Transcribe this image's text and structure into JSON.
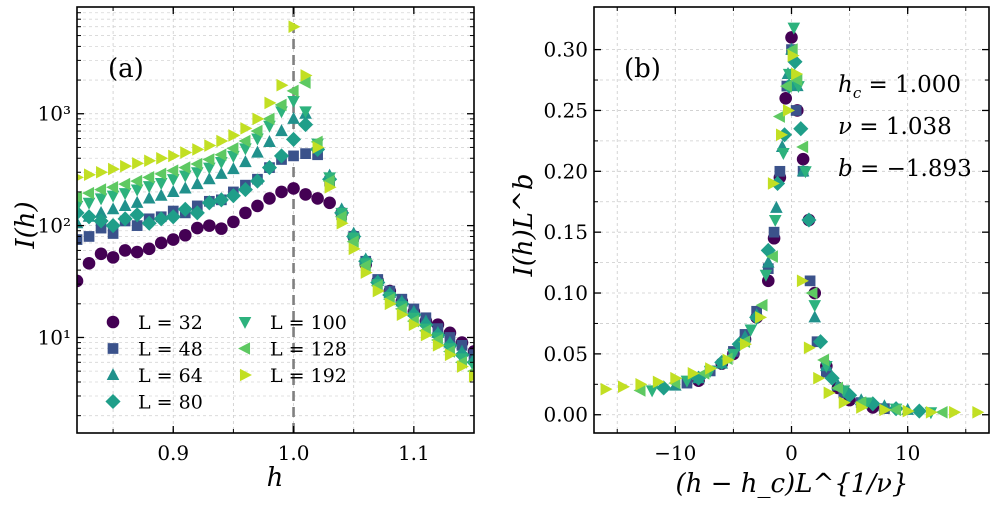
{
  "chart_data": [
    {
      "type": "scatter",
      "panel_label": "(a)",
      "xlabel": "h",
      "ylabel": "I(h)",
      "yscale": "log",
      "xlim": [
        0.82,
        1.15
      ],
      "ylim": [
        1.4,
        9000
      ],
      "xticks": [
        0.9,
        1.0,
        1.1
      ],
      "xtick_labels": [
        "0.9",
        "1.0",
        "1.1"
      ],
      "yticks": [
        10,
        100,
        1000
      ],
      "ytick_labels": [
        "10¹",
        "10²",
        "10³"
      ],
      "grid": true,
      "vline": {
        "x": 1.0,
        "style": "dashed",
        "color": "#808080"
      },
      "legend": {
        "placement": "lower-left",
        "columns": 2
      },
      "series": [
        {
          "name": "L = 32",
          "marker": "circle",
          "color": "#440154",
          "x": [
            0.82,
            0.83,
            0.84,
            0.85,
            0.86,
            0.87,
            0.88,
            0.89,
            0.9,
            0.91,
            0.92,
            0.93,
            0.94,
            0.95,
            0.96,
            0.97,
            0.98,
            0.99,
            1.0,
            1.01,
            1.02,
            1.03,
            1.04,
            1.05,
            1.06,
            1.07,
            1.08,
            1.09,
            1.1,
            1.11,
            1.12,
            1.13,
            1.14,
            1.15
          ],
          "y": [
            32,
            46,
            56,
            52,
            60,
            58,
            62,
            70,
            75,
            82,
            95,
            100,
            94,
            108,
            130,
            150,
            175,
            200,
            215,
            190,
            175,
            160,
            130,
            80,
            45,
            32,
            26,
            21,
            17,
            14,
            13,
            11,
            9,
            7.5
          ]
        },
        {
          "name": "L = 48",
          "marker": "square",
          "color": "#3b528b",
          "x": [
            0.82,
            0.83,
            0.84,
            0.85,
            0.86,
            0.87,
            0.88,
            0.89,
            0.9,
            0.91,
            0.92,
            0.93,
            0.94,
            0.95,
            0.96,
            0.97,
            0.98,
            0.99,
            1.0,
            1.01,
            1.02,
            1.03,
            1.04,
            1.05,
            1.06,
            1.07,
            1.08,
            1.09,
            1.1,
            1.11,
            1.12,
            1.13,
            1.14,
            1.15
          ],
          "y": [
            75,
            80,
            95,
            85,
            110,
            100,
            115,
            120,
            135,
            130,
            150,
            165,
            170,
            200,
            230,
            260,
            330,
            390,
            420,
            440,
            430,
            250,
            125,
            80,
            48,
            33,
            26,
            22,
            18,
            15,
            12,
            10,
            8.5,
            7
          ]
        },
        {
          "name": "L = 64",
          "marker": "triangle-up",
          "color": "#21918c",
          "x": [
            0.82,
            0.83,
            0.84,
            0.85,
            0.86,
            0.87,
            0.88,
            0.89,
            0.9,
            0.91,
            0.92,
            0.93,
            0.94,
            0.95,
            0.96,
            0.97,
            0.98,
            0.99,
            1.0,
            1.01,
            1.02,
            1.03,
            1.04,
            1.05,
            1.06,
            1.07,
            1.08,
            1.09,
            1.1,
            1.11,
            1.12,
            1.13,
            1.14,
            1.15
          ],
          "y": [
            105,
            120,
            130,
            140,
            150,
            160,
            175,
            185,
            200,
            215,
            235,
            260,
            290,
            320,
            370,
            450,
            560,
            700,
            900,
            1000,
            520,
            280,
            140,
            85,
            50,
            32,
            25,
            21,
            17,
            14,
            11,
            9,
            7.5,
            6.5
          ]
        },
        {
          "name": "L = 80",
          "marker": "diamond",
          "color": "#1f9e89",
          "x": [
            0.82,
            0.83,
            0.84,
            0.85,
            0.86,
            0.87,
            0.88,
            0.89,
            0.9,
            0.91,
            0.92,
            0.93,
            0.94,
            0.95,
            0.96,
            0.97,
            0.98,
            0.99,
            1.0,
            1.01,
            1.02,
            1.03,
            1.04,
            1.05,
            1.06,
            1.07,
            1.08,
            1.09,
            1.1,
            1.11,
            1.12,
            1.13,
            1.14,
            1.15
          ],
          "y": [
            130,
            120,
            110,
            100,
            115,
            125,
            105,
            115,
            120,
            140,
            130,
            160,
            170,
            185,
            210,
            250,
            330,
            420,
            590,
            800,
            480,
            260,
            130,
            80,
            48,
            31,
            24,
            20,
            16,
            13,
            10.5,
            8.5,
            7,
            6
          ]
        },
        {
          "name": "L = 100",
          "marker": "triangle-down",
          "color": "#2db27d",
          "x": [
            0.82,
            0.83,
            0.84,
            0.85,
            0.86,
            0.87,
            0.88,
            0.89,
            0.9,
            0.91,
            0.92,
            0.93,
            0.94,
            0.95,
            0.96,
            0.97,
            0.98,
            0.99,
            1.0,
            1.01,
            1.02,
            1.03,
            1.04,
            1.05,
            1.06,
            1.07,
            1.08,
            1.09,
            1.1,
            1.11,
            1.12,
            1.13,
            1.14,
            1.15
          ],
          "y": [
            150,
            160,
            175,
            185,
            195,
            210,
            225,
            240,
            260,
            280,
            300,
            330,
            370,
            420,
            490,
            600,
            780,
            1050,
            1300,
            1050,
            540,
            270,
            130,
            78,
            46,
            30,
            23,
            19,
            15,
            12,
            10,
            8,
            6.5,
            5.5
          ]
        },
        {
          "name": "L = 128",
          "marker": "triangle-left",
          "color": "#5ec962",
          "x": [
            0.82,
            0.83,
            0.84,
            0.85,
            0.86,
            0.87,
            0.88,
            0.89,
            0.9,
            0.91,
            0.92,
            0.93,
            0.94,
            0.95,
            0.96,
            0.97,
            0.98,
            0.99,
            1.0,
            1.01,
            1.02,
            1.03,
            1.04,
            1.05,
            1.06,
            1.07,
            1.08,
            1.09,
            1.1,
            1.11,
            1.12,
            1.13,
            1.14,
            1.15
          ],
          "y": [
            180,
            195,
            210,
            220,
            235,
            250,
            270,
            290,
            310,
            330,
            355,
            390,
            430,
            490,
            570,
            700,
            900,
            1200,
            1600,
            1900,
            560,
            250,
            120,
            72,
            44,
            29,
            22,
            18,
            14,
            11.5,
            9.5,
            7.5,
            6,
            5
          ]
        },
        {
          "name": "L = 192",
          "marker": "triangle-right",
          "color": "#c2df23",
          "x": [
            0.82,
            0.83,
            0.84,
            0.85,
            0.86,
            0.87,
            0.88,
            0.89,
            0.9,
            0.91,
            0.92,
            0.93,
            0.94,
            0.95,
            0.96,
            0.97,
            0.98,
            0.99,
            1.0,
            1.01,
            1.02,
            1.03,
            1.04,
            1.05,
            1.06,
            1.07,
            1.08,
            1.09,
            1.1,
            1.11,
            1.12,
            1.13,
            1.14,
            1.15
          ],
          "y": [
            270,
            285,
            300,
            320,
            340,
            360,
            380,
            400,
            420,
            450,
            480,
            520,
            570,
            640,
            740,
            900,
            1250,
            1800,
            6000,
            2200,
            500,
            220,
            105,
            62,
            38,
            26,
            20,
            16,
            13,
            10.5,
            8.5,
            7,
            5.5,
            4.5
          ]
        }
      ]
    },
    {
      "type": "scatter",
      "panel_label": "(b)",
      "xlabel": "(h − h_c)L^{1/ν}",
      "ylabel": "I(h)L^b",
      "xlim": [
        -17,
        17
      ],
      "ylim": [
        -0.015,
        0.335
      ],
      "xticks": [
        -10,
        0,
        10
      ],
      "xtick_labels": [
        "−10",
        "0",
        "10"
      ],
      "yticks": [
        0.0,
        0.05,
        0.1,
        0.15,
        0.2,
        0.25,
        0.3
      ],
      "ytick_labels": [
        "0.00",
        "0.05",
        "0.10",
        "0.15",
        "0.20",
        "0.25",
        "0.30"
      ],
      "grid": true,
      "annotations": [
        "h_c = 1.000",
        "ν = 1.038",
        "b = −1.893"
      ],
      "annotation_parts": {
        "hc_symbol": "h",
        "hc_subscript": "c",
        "hc_value": " = 1.000",
        "nu_symbol": "ν",
        "nu_value": " = 1.038",
        "b_symbol": "b",
        "b_value": " = −1.893"
      },
      "series": [
        {
          "name": "L = 32",
          "marker": "circle",
          "color": "#440154",
          "x": [
            -8,
            -6,
            -5,
            -4,
            -3,
            -2,
            -1.5,
            -1,
            -0.5,
            0,
            0.5,
            1,
            1.5,
            2,
            3,
            4,
            5,
            7
          ],
          "y": [
            0.028,
            0.042,
            0.05,
            0.062,
            0.08,
            0.11,
            0.145,
            0.195,
            0.26,
            0.31,
            0.25,
            0.21,
            0.16,
            0.1,
            0.04,
            0.022,
            0.012,
            0.006
          ]
        },
        {
          "name": "L = 48",
          "marker": "square",
          "color": "#3b528b",
          "x": [
            -9,
            -7,
            -5,
            -4,
            -3,
            -2,
            -1.5,
            -1,
            -0.4,
            0,
            0.4,
            1,
            1.6,
            2.2,
            3,
            4.5,
            6,
            8
          ],
          "y": [
            0.026,
            0.036,
            0.052,
            0.066,
            0.085,
            0.12,
            0.15,
            0.2,
            0.27,
            0.3,
            0.25,
            0.2,
            0.11,
            0.06,
            0.035,
            0.018,
            0.01,
            0.005
          ]
        },
        {
          "name": "L = 64",
          "marker": "triangle-up",
          "color": "#21918c",
          "x": [
            -10,
            -8,
            -6,
            -4,
            -3,
            -2,
            -1.3,
            -0.8,
            -0.3,
            0,
            0.5,
            1,
            2,
            3,
            4,
            6,
            8,
            10
          ],
          "y": [
            0.024,
            0.03,
            0.042,
            0.064,
            0.082,
            0.125,
            0.17,
            0.22,
            0.28,
            0.3,
            0.27,
            0.2,
            0.08,
            0.04,
            0.024,
            0.012,
            0.007,
            0.004
          ]
        },
        {
          "name": "L = 80",
          "marker": "diamond",
          "color": "#1f9e89",
          "x": [
            -11,
            -8,
            -6,
            -4.5,
            -3,
            -2,
            -1.2,
            -0.6,
            -0.2,
            0.3,
            0.8,
            1.5,
            2.5,
            3.5,
            5,
            7,
            9,
            11
          ],
          "y": [
            0.022,
            0.03,
            0.043,
            0.058,
            0.08,
            0.135,
            0.19,
            0.23,
            0.27,
            0.29,
            0.235,
            0.16,
            0.06,
            0.03,
            0.016,
            0.009,
            0.005,
            0.003
          ]
        },
        {
          "name": "L = 100",
          "marker": "triangle-down",
          "color": "#2db27d",
          "x": [
            -12,
            -9,
            -7,
            -5,
            -3.5,
            -2.2,
            -1.4,
            -0.7,
            -0.2,
            0.2,
            0.6,
            1.2,
            2,
            3,
            4.5,
            6.5,
            9,
            12
          ],
          "y": [
            0.02,
            0.028,
            0.036,
            0.05,
            0.07,
            0.115,
            0.16,
            0.215,
            0.28,
            0.318,
            0.27,
            0.2,
            0.09,
            0.04,
            0.02,
            0.01,
            0.005,
            0.002
          ]
        },
        {
          "name": "L = 128",
          "marker": "triangle-left",
          "color": "#5ec962",
          "x": [
            -13,
            -10,
            -7.5,
            -5.5,
            -4,
            -2.5,
            -1.6,
            -1,
            -0.4,
            0.1,
            0.5,
            1,
            1.8,
            2.8,
            4,
            6,
            9,
            13
          ],
          "y": [
            0.02,
            0.026,
            0.034,
            0.046,
            0.06,
            0.09,
            0.13,
            0.245,
            0.27,
            0.3,
            0.275,
            0.22,
            0.1,
            0.045,
            0.022,
            0.01,
            0.004,
            0.002
          ]
        },
        {
          "name": "L = 192",
          "marker": "triangle-right",
          "color": "#c2df23",
          "x": [
            -16,
            -14.5,
            -13,
            -11.5,
            -10,
            -8.5,
            -7,
            -5.5,
            -4,
            -2.7,
            -1.6,
            -0.9,
            -0.3,
            0.1,
            0.4,
            0.9,
            1.5,
            2.3,
            3.2,
            4.5,
            6,
            8,
            10,
            12,
            14,
            16
          ],
          "y": [
            0.021,
            0.023,
            0.025,
            0.027,
            0.03,
            0.034,
            0.038,
            0.045,
            0.058,
            0.08,
            0.19,
            0.23,
            0.25,
            0.295,
            0.28,
            0.11,
            0.055,
            0.03,
            0.018,
            0.01,
            0.006,
            0.004,
            0.003,
            0.002,
            0.002,
            0.002
          ]
        }
      ]
    }
  ]
}
